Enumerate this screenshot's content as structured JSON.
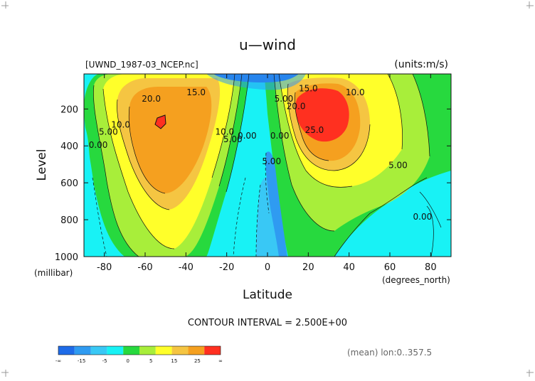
{
  "chart_data": {
    "type": "heatmap",
    "subtype": "filled-contour",
    "title": "u—wind",
    "source_label": "[UWND_1987-03_NCEP.nc]",
    "units_label": "(units:m/s)",
    "xlabel": "Latitude",
    "xlabel_units": "(degrees_north)",
    "ylabel": "Level",
    "ylabel_units": "(millibar)",
    "xlim": [
      -90,
      90
    ],
    "ylim": [
      1000,
      10
    ],
    "x_ticks": [
      {
        "value": -80,
        "label": "-80"
      },
      {
        "value": -60,
        "label": "-60"
      },
      {
        "value": -40,
        "label": "-40"
      },
      {
        "value": -20,
        "label": "-20"
      },
      {
        "value": 0,
        "label": "0"
      },
      {
        "value": 20,
        "label": "20"
      },
      {
        "value": 40,
        "label": "40"
      },
      {
        "value": 60,
        "label": "60"
      },
      {
        "value": 80,
        "label": "80"
      }
    ],
    "y_ticks": [
      {
        "value": 200,
        "label": "200"
      },
      {
        "value": 400,
        "label": "400"
      },
      {
        "value": 600,
        "label": "600"
      },
      {
        "value": 800,
        "label": "800"
      },
      {
        "value": 1000,
        "label": "1000"
      }
    ],
    "contour_interval_label": "CONTOUR INTERVAL = 2.500E+00",
    "contour_interval": 2.5,
    "footer_note": "(mean) lon:0..357.5",
    "contour_labels": [
      {
        "text": "20.0",
        "lat": -57,
        "p": 160
      },
      {
        "text": "15.0",
        "lat": -35,
        "p": 125
      },
      {
        "text": "10.0",
        "lat": -72,
        "p": 300
      },
      {
        "text": "5.00",
        "lat": -78,
        "p": 340
      },
      {
        "text": "0.00",
        "lat": -83,
        "p": 410
      },
      {
        "text": "10.0",
        "lat": -21,
        "p": 340
      },
      {
        "text": "5.00",
        "lat": -17,
        "p": 380
      },
      {
        "text": "0.00",
        "lat": -10,
        "p": 360
      },
      {
        "text": "5.00",
        "lat": 8,
        "p": 160
      },
      {
        "text": "0.00",
        "lat": 6,
        "p": 360
      },
      {
        "text": "5.00",
        "lat": 2,
        "p": 500
      },
      {
        "text": "15.0",
        "lat": 20,
        "p": 105
      },
      {
        "text": "20.0",
        "lat": 14,
        "p": 200
      },
      {
        "text": "25.0",
        "lat": 23,
        "p": 330
      },
      {
        "text": "10.0",
        "lat": 43,
        "p": 125
      },
      {
        "text": "5.00",
        "lat": 64,
        "p": 520
      },
      {
        "text": "0.00",
        "lat": 76,
        "p": 800
      }
    ],
    "colorbar": {
      "colors": [
        "#1e6be8",
        "#2f9bf1",
        "#39c8f5",
        "#18f2f5",
        "#27d93e",
        "#a8ee3a",
        "#ffff2a",
        "#f5c542",
        "#f5a01f",
        "#ff3020"
      ],
      "tick_labels": [
        "-∞",
        "-15",
        "-5",
        "0",
        "5",
        "15",
        "25",
        "∞"
      ]
    }
  }
}
